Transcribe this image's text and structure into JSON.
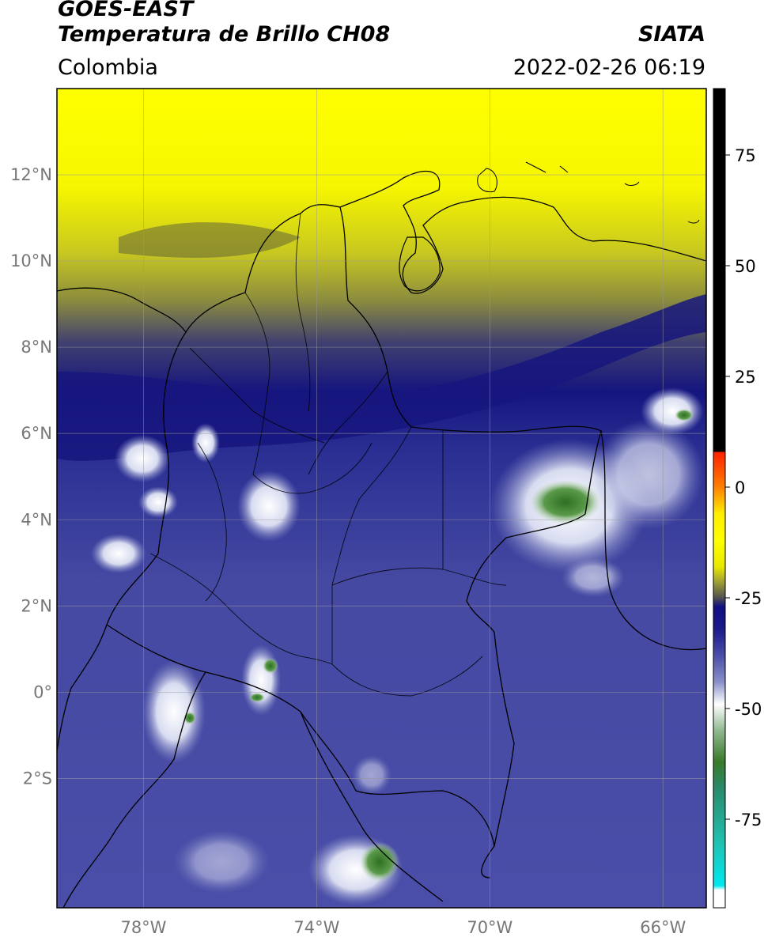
{
  "header": {
    "title_line1": "GOES-EAST",
    "title_line2": "Temperatura de Brillo CH08",
    "agency": "SIATA",
    "region": "Colombia",
    "datetime": "2022-02-26 06:19"
  },
  "map": {
    "lon_range": [
      -80,
      -65
    ],
    "lat_range": [
      -5,
      14
    ],
    "lat_ticks": [
      {
        "value": 12,
        "label": "12°N"
      },
      {
        "value": 10,
        "label": "10°N"
      },
      {
        "value": 8,
        "label": "8°N"
      },
      {
        "value": 6,
        "label": "6°N"
      },
      {
        "value": 4,
        "label": "4°N"
      },
      {
        "value": 2,
        "label": "2°N"
      },
      {
        "value": 0,
        "label": "0°"
      },
      {
        "value": -2,
        "label": "2°S"
      }
    ],
    "lon_ticks": [
      {
        "value": -78,
        "label": "78°W"
      },
      {
        "value": -74,
        "label": "74°W"
      },
      {
        "value": -70,
        "label": "70°W"
      },
      {
        "value": -66,
        "label": "66°W"
      }
    ]
  },
  "colorbar": {
    "range": [
      -95,
      90
    ],
    "ticks": [
      {
        "value": 75,
        "label": "75"
      },
      {
        "value": 50,
        "label": "50"
      },
      {
        "value": 25,
        "label": "25"
      },
      {
        "value": 0,
        "label": "0"
      },
      {
        "value": -25,
        "label": "-25"
      },
      {
        "value": -50,
        "label": "-50"
      },
      {
        "value": -75,
        "label": "-75"
      }
    ],
    "stops": [
      {
        "value": 90,
        "color": "#000000"
      },
      {
        "value": 8,
        "color": "#000000"
      },
      {
        "value": 7.9,
        "color": "#ff2000"
      },
      {
        "value": 0,
        "color": "#ff8000"
      },
      {
        "value": -6,
        "color": "#ffee00"
      },
      {
        "value": -12,
        "color": "#ffff00"
      },
      {
        "value": -18,
        "color": "#e8e800"
      },
      {
        "value": -21,
        "color": "#a8a830"
      },
      {
        "value": -25,
        "color": "#505050"
      },
      {
        "value": -27,
        "color": "#101080"
      },
      {
        "value": -32,
        "color": "#1a1a8a"
      },
      {
        "value": -38,
        "color": "#4a4ea8"
      },
      {
        "value": -44,
        "color": "#8890c8"
      },
      {
        "value": -49,
        "color": "#ffffff"
      },
      {
        "value": -55,
        "color": "#90b890"
      },
      {
        "value": -62,
        "color": "#3a7a2a"
      },
      {
        "value": -68,
        "color": "#2a8a6a"
      },
      {
        "value": -80,
        "color": "#20c0b0"
      },
      {
        "value": -90,
        "color": "#00e8f0"
      },
      {
        "value": -91,
        "color": "#ffffff"
      },
      {
        "value": -95,
        "color": "#ffffff"
      }
    ]
  }
}
